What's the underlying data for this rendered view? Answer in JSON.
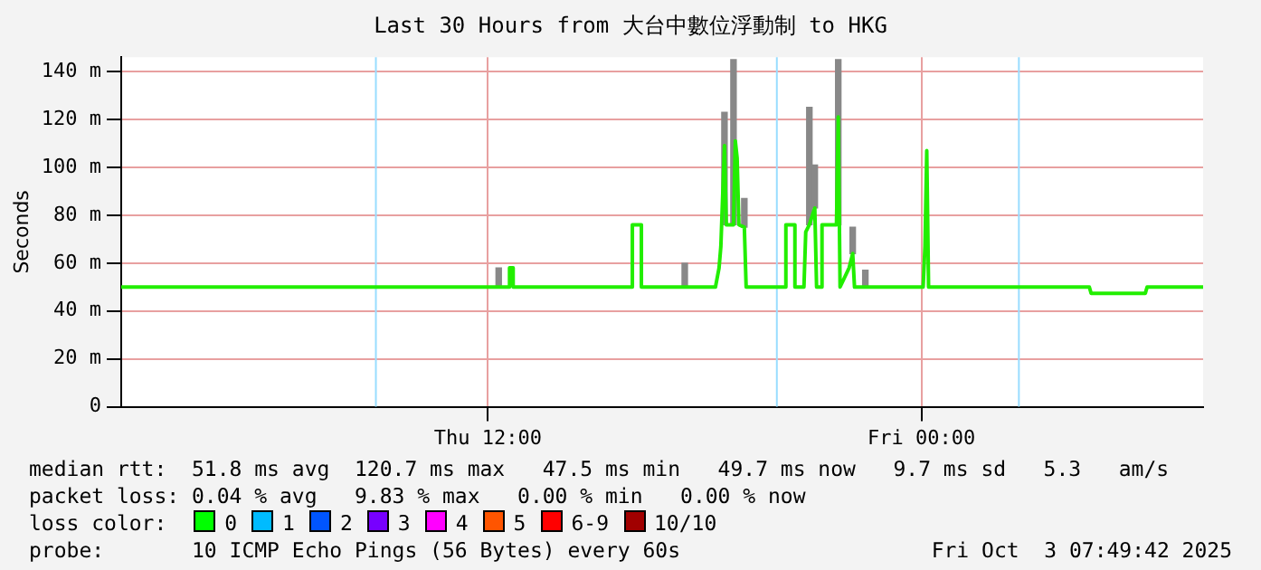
{
  "chart_data": {
    "type": "line",
    "title": "Last 30 Hours from 大台中數位浮動制 to HKG",
    "ylabel": "Seconds",
    "xlim": [
      "2025-10-02T01:51",
      "2025-10-03T07:48"
    ],
    "xticks": [
      {
        "value": "2025-10-02T12:00",
        "label": "Thu 12:00"
      },
      {
        "value": "2025-10-03T00:00",
        "label": "Fri 00:00"
      }
    ],
    "ylim": [
      0,
      146
    ],
    "yticks": [
      0,
      {
        "value": 20,
        "label": "20 m"
      },
      {
        "value": 40,
        "label": "40 m"
      },
      {
        "value": 60,
        "label": "60 m"
      },
      {
        "value": 80,
        "label": "80 m"
      },
      {
        "value": 100,
        "label": "100 m"
      },
      {
        "value": 120,
        "label": "120 m"
      },
      {
        "value": 140,
        "label": "140 m"
      }
    ],
    "grid": true,
    "marker": "none",
    "line_style": "solid",
    "series": [
      {
        "type": "bar",
        "color": "#888888",
        "x": [
          "2025-10-02T12:18",
          "2025-10-02T17:27",
          "2025-10-02T18:33",
          "2025-10-02T18:48",
          "2025-10-02T19:06",
          "2025-10-02T20:54",
          "2025-10-02T21:03",
          "2025-10-02T21:42",
          "2025-10-02T22:06",
          "2025-10-02T22:27"
        ],
        "base": [
          50,
          50,
          76,
          76,
          75,
          76,
          83,
          76,
          64,
          50
        ],
        "values": [
          8,
          10,
          47,
          69,
          12,
          49,
          18,
          69,
          11,
          7
        ]
      },
      {
        "color": "#22ee00",
        "x": [
          "2025-10-02T01:51",
          "2025-10-02T12:36",
          "2025-10-02T12:36",
          "2025-10-02T12:42",
          "2025-10-02T12:42",
          "2025-10-02T16:00",
          "2025-10-02T16:00",
          "2025-10-02T16:15",
          "2025-10-02T16:15",
          "2025-10-02T18:18",
          "2025-10-02T18:24",
          "2025-10-02T18:27",
          "2025-10-02T18:33",
          "2025-10-02T18:36",
          "2025-10-02T18:48",
          "2025-10-02T18:51",
          "2025-10-02T18:54",
          "2025-10-02T18:57",
          "2025-10-02T19:06",
          "2025-10-02T19:09",
          "2025-10-02T20:15",
          "2025-10-02T20:15",
          "2025-10-02T20:30",
          "2025-10-02T20:30",
          "2025-10-02T20:45",
          "2025-10-02T20:48",
          "2025-10-02T20:54",
          "2025-10-02T21:03",
          "2025-10-02T21:06",
          "2025-10-02T21:15",
          "2025-10-02T21:15",
          "2025-10-02T21:39",
          "2025-10-02T21:42",
          "2025-10-02T21:45",
          "2025-10-02T22:00",
          "2025-10-02T22:06",
          "2025-10-02T22:09",
          "2025-10-03T00:03",
          "2025-10-03T00:06",
          "2025-10-03T00:09",
          "2025-10-03T00:12",
          "2025-10-03T04:39",
          "2025-10-03T04:42",
          "2025-10-03T06:12",
          "2025-10-03T06:15",
          "2025-10-03T07:48"
        ],
        "values": [
          50,
          50,
          58,
          58,
          50,
          50,
          76,
          76,
          50,
          50,
          58,
          67,
          109,
          76,
          76,
          111,
          104,
          76,
          75,
          50,
          50,
          76,
          76,
          50,
          50,
          73,
          76,
          83,
          50,
          50,
          76,
          76,
          121,
          50,
          58,
          64,
          50,
          50,
          67,
          107,
          50,
          50,
          47.4,
          47.4,
          50,
          50
        ]
      }
    ],
    "ref_lines": [
      {
        "axis": "x",
        "value": "2025-10-02T08:54",
        "color": "#99ddff"
      },
      {
        "axis": "x",
        "value": "2025-10-02T20:00",
        "color": "#99ddff"
      },
      {
        "axis": "x",
        "value": "2025-10-03T02:42",
        "color": "#99ddff"
      }
    ],
    "annotations": [
      "median rtt:  51.8 ms avg  120.7 ms max   47.5 ms min   49.7 ms now   9.7 ms sd   5.3   am/s",
      "packet loss: 0.04 % avg   9.83 % max   0.00 % min   0.00 % now",
      "loss color:",
      "0",
      "1",
      "2",
      "3",
      "4",
      "5",
      "6-9",
      "10/10",
      "probe:       10 ICMP Echo Pings (56 Bytes) every 60s",
      "Fri Oct  3 07:49:42 2025"
    ]
  }
}
